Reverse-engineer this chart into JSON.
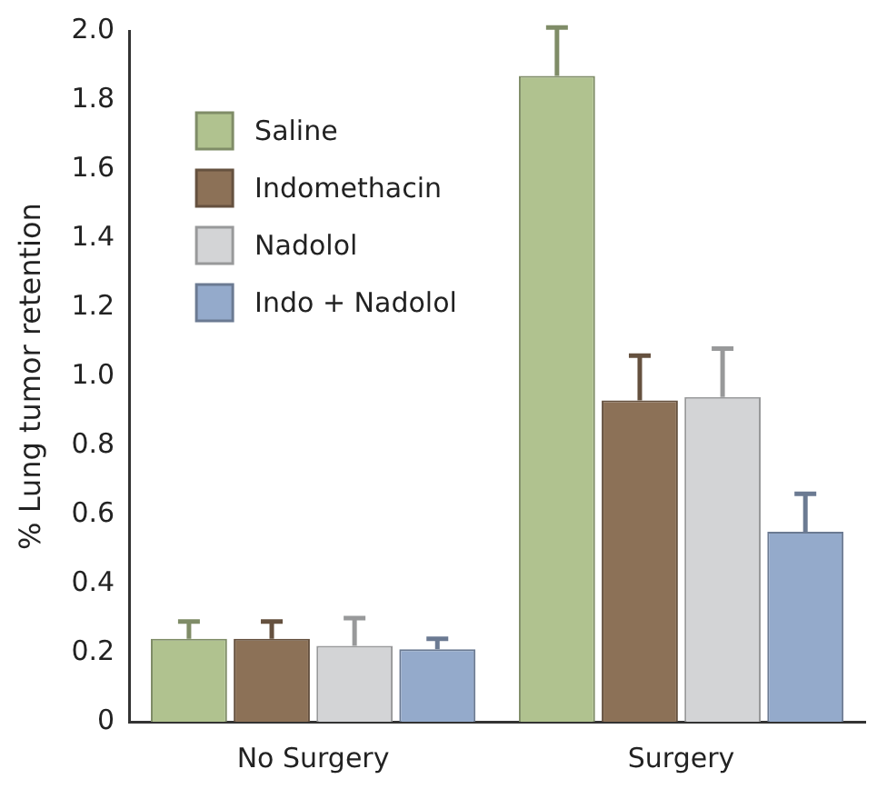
{
  "chart_data": {
    "type": "bar",
    "ylabel": "% Lung tumor retention",
    "categories": [
      "No Surgery",
      "Surgery"
    ],
    "series": [
      {
        "name": "Saline",
        "color": "#b0c28f",
        "values": [
          0.24,
          1.87
        ],
        "errors": [
          [
            0.24,
            0.29
          ],
          [
            1.87,
            2.01
          ]
        ]
      },
      {
        "name": "Indomethacin",
        "color": "#8c7157",
        "values": [
          0.24,
          0.93
        ],
        "errors": [
          [
            0.24,
            0.29
          ],
          [
            0.93,
            1.06
          ]
        ]
      },
      {
        "name": "Nadolol",
        "color": "#d3d4d6",
        "values": [
          0.22,
          0.94
        ],
        "errors": [
          [
            0.22,
            0.3
          ],
          [
            0.94,
            1.08
          ]
        ]
      },
      {
        "name": "Indo + Nadolol",
        "color": "#94aacb",
        "values": [
          0.21,
          0.55
        ],
        "errors": [
          [
            0.21,
            0.24
          ],
          [
            0.55,
            0.66
          ]
        ]
      }
    ],
    "ylim": [
      0,
      2.0
    ],
    "yticks": [
      0,
      {
        "value": 0.2,
        "label": "0.2"
      },
      {
        "value": 0.4,
        "label": "0.4"
      },
      {
        "value": 0.6,
        "label": "0.6"
      },
      {
        "value": 0.8,
        "label": "0.8"
      },
      {
        "value": 1.0,
        "label": "1.0"
      },
      {
        "value": 1.2,
        "label": "1.2"
      },
      {
        "value": 1.4,
        "label": "1.4"
      },
      {
        "value": 1.6,
        "label": "1.6"
      },
      {
        "value": 1.8,
        "label": "1.8"
      },
      {
        "value": 2.0,
        "label": "2.0"
      }
    ],
    "grid": false,
    "legend": "top left"
  }
}
